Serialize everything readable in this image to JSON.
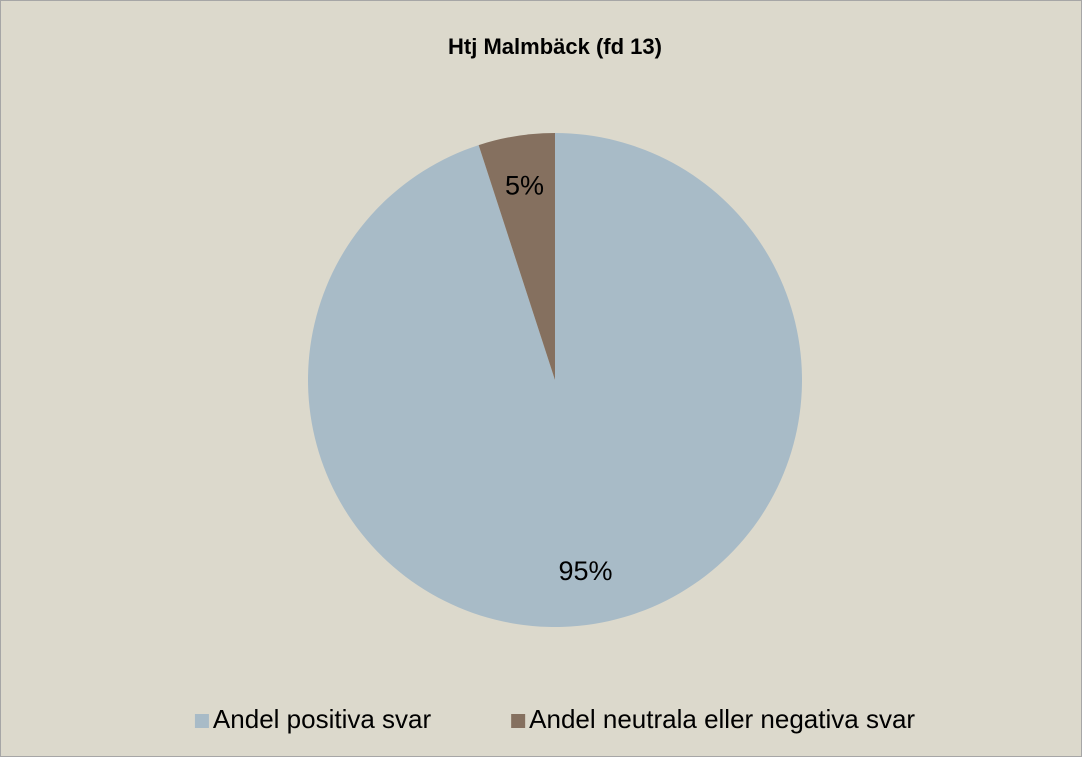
{
  "chart_data": {
    "type": "pie",
    "title": "Htj Malmbäck (fd 13)",
    "categories": [
      "Andel positiva svar",
      "Andel neutrala eller negativa svar"
    ],
    "values": [
      95,
      5
    ],
    "value_labels": [
      "95%",
      "5%"
    ],
    "colors": [
      "#a8bbc7",
      "#85705f"
    ],
    "legend": "bottom"
  }
}
